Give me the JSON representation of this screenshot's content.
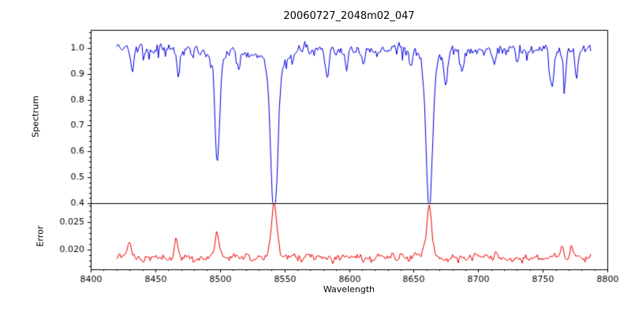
{
  "chart_data": {
    "type": "line",
    "title": "20060727_2048m02_047",
    "xlabel": "Wavelength",
    "x_range": [
      8400,
      8800
    ],
    "x_data_range": [
      8420,
      8788
    ],
    "x_ticks": [
      8400,
      8450,
      8500,
      8550,
      8600,
      8650,
      8700,
      8750,
      8800
    ],
    "x_minor_step": 10,
    "legend": "none",
    "grid": false,
    "seed": 20060727,
    "panels": [
      {
        "name": "spectrum",
        "ylabel": "Spectrum",
        "ylim": [
          0.4,
          1.07
        ],
        "yticks": [
          0.4,
          0.5,
          0.6,
          0.7,
          0.8,
          0.9,
          1.0
        ],
        "y_minor_step": 0.02,
        "tick_decimals": 1,
        "color": "#0000dd",
        "continuum": 0.995,
        "noise_sigma": 0.011
      },
      {
        "name": "error",
        "ylabel": "Error",
        "ylim": [
          0.0164,
          0.0284
        ],
        "yticks": [
          0.02,
          0.025
        ],
        "y_minor_step": 0.001,
        "tick_decimals": 3,
        "color": "#ee0000",
        "baseline": 0.0185,
        "noise_sigma": 0.00035
      }
    ],
    "absorption_lines": [
      {
        "center": 8498.0,
        "depth": 0.39,
        "width": 1.7,
        "err_peak": 0.0045,
        "err_width": 1.6
      },
      {
        "center": 8542.1,
        "depth": 0.585,
        "width": 2.6,
        "err_peak": 0.01,
        "err_width": 2.2
      },
      {
        "center": 8662.1,
        "depth": 0.565,
        "width": 2.3,
        "err_peak": 0.0092,
        "err_width": 2.0
      }
    ],
    "weak_lines": [
      {
        "center": 8432,
        "depth": 0.08,
        "width": 1.2
      },
      {
        "center": 8468,
        "depth": 0.09,
        "width": 1.3
      },
      {
        "center": 8514,
        "depth": 0.07,
        "width": 1.2
      },
      {
        "center": 8583,
        "depth": 0.1,
        "width": 1.4
      },
      {
        "center": 8598,
        "depth": 0.07,
        "width": 1.2
      },
      {
        "center": 8611,
        "depth": 0.05,
        "width": 1.0
      },
      {
        "center": 8648,
        "depth": 0.06,
        "width": 1.1
      },
      {
        "center": 8675,
        "depth": 0.12,
        "width": 1.4
      },
      {
        "center": 8688,
        "depth": 0.09,
        "width": 1.2
      },
      {
        "center": 8713,
        "depth": 0.06,
        "width": 1.1
      },
      {
        "center": 8730,
        "depth": 0.05,
        "width": 1.0
      },
      {
        "center": 8757,
        "depth": 0.15,
        "width": 1.5
      },
      {
        "center": 8767,
        "depth": 0.12,
        "width": 1.2
      },
      {
        "center": 8776,
        "depth": 0.1,
        "width": 1.1
      }
    ],
    "error_small_spikes": [
      {
        "center": 8430,
        "peak": 0.003,
        "width": 1.4
      },
      {
        "center": 8466,
        "peak": 0.0032,
        "width": 1.4
      },
      {
        "center": 8765,
        "peak": 0.0022,
        "width": 1.2
      },
      {
        "center": 8772,
        "peak": 0.002,
        "width": 1.0
      }
    ]
  }
}
